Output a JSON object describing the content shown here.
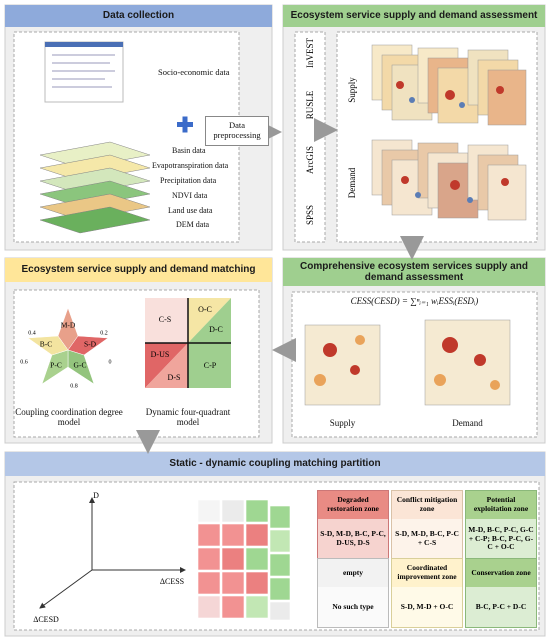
{
  "data_collection": {
    "title": "Data collection",
    "socio_economic": "Socio-economic data",
    "preprocessing": "Data preprocessing",
    "layers": [
      "Basin data",
      "Evapotranspiration data",
      "Precipitation data",
      "NDVI data",
      "Land use data",
      "DEM data"
    ]
  },
  "assessment": {
    "title": "Ecosystem service supply and demand assessment",
    "tools": [
      "InVEST",
      "RUSLE",
      "ArcGIS",
      "SPSS"
    ],
    "supply": "Supply",
    "demand": "Demand"
  },
  "matching": {
    "title": "Ecosystem service supply and demand matching",
    "star_labels": [
      "M-D",
      "S-D",
      "G-C",
      "P-C",
      "B-C"
    ],
    "star_scale": [
      "0.4",
      "0.2",
      "0.6",
      "0",
      "0.8"
    ],
    "coupling_caption": "Coupling coordination degree model",
    "quadrants": [
      "C-S",
      "O-C",
      "D-C",
      "D-US",
      "D-S",
      "C-P"
    ],
    "quadrant_caption": "Dynamic four-quadrant model"
  },
  "comprehensive": {
    "title": "Comprehensive ecosystem services supply and demand assessment",
    "formula": "CESS(CESD) = ∑ⁿᵢ₌₁ wᵢESSᵢ(ESDᵢ)",
    "supply": "Supply",
    "demand": "Demand"
  },
  "partition": {
    "title": "Static - dynamic coupling matching partition",
    "axes": [
      "D",
      "ΔCESS",
      "ΔCESD"
    ],
    "zones": [
      {
        "name": "Degraded restoration zone",
        "types": "S-D, M-D, B-C, P-C, D-US, D-S"
      },
      {
        "name": "Conflict mitigation zone",
        "types": "S-D, M-D, B-C, P-C + C-S"
      },
      {
        "name": "Potential exploitation zone",
        "types": "M-D, B-C, P-C, G-C + C-P; B-C, P-C, G-C + O-C"
      },
      {
        "name": "empty",
        "types": "No such type"
      },
      {
        "name": "Coordinated improvement zone",
        "types": "S-D, M-D + O-C"
      },
      {
        "name": "Conservation zone",
        "types": "B-C, P-C + D-C"
      }
    ]
  }
}
